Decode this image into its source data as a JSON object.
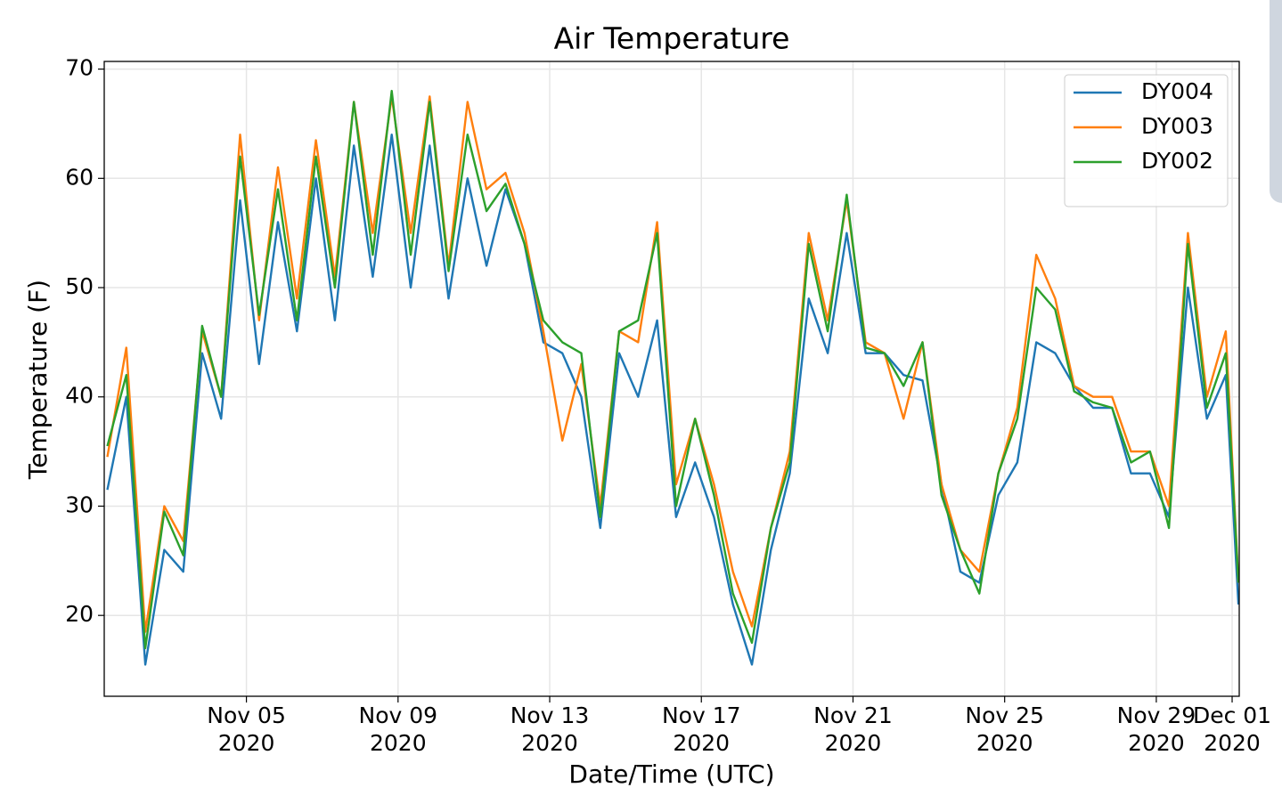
{
  "chart_data": {
    "type": "line",
    "title": "Air Temperature",
    "x_label": "Date/Time (UTC)",
    "y_label": "Temperature (F)",
    "x": [
      "2020-11-01 08:00",
      "2020-11-01 20:00",
      "2020-11-02 08:00",
      "2020-11-02 20:00",
      "2020-11-03 08:00",
      "2020-11-03 20:00",
      "2020-11-04 08:00",
      "2020-11-04 20:00",
      "2020-11-05 08:00",
      "2020-11-05 20:00",
      "2020-11-06 08:00",
      "2020-11-06 20:00",
      "2020-11-07 08:00",
      "2020-11-07 20:00",
      "2020-11-08 08:00",
      "2020-11-08 20:00",
      "2020-11-09 08:00",
      "2020-11-09 20:00",
      "2020-11-10 08:00",
      "2020-11-10 20:00",
      "2020-11-11 08:00",
      "2020-11-11 20:00",
      "2020-11-12 08:00",
      "2020-11-12 20:00",
      "2020-11-13 08:00",
      "2020-11-13 20:00",
      "2020-11-14 08:00",
      "2020-11-14 20:00",
      "2020-11-15 08:00",
      "2020-11-15 20:00",
      "2020-11-16 08:00",
      "2020-11-16 20:00",
      "2020-11-17 08:00",
      "2020-11-17 20:00",
      "2020-11-18 08:00",
      "2020-11-18 20:00",
      "2020-11-19 08:00",
      "2020-11-19 20:00",
      "2020-11-20 08:00",
      "2020-11-20 20:00",
      "2020-11-21 08:00",
      "2020-11-21 20:00",
      "2020-11-22 08:00",
      "2020-11-22 20:00",
      "2020-11-23 08:00",
      "2020-11-23 20:00",
      "2020-11-24 08:00",
      "2020-11-24 20:00",
      "2020-11-25 08:00",
      "2020-11-25 20:00",
      "2020-11-26 08:00",
      "2020-11-26 20:00",
      "2020-11-27 08:00",
      "2020-11-27 20:00",
      "2020-11-28 08:00",
      "2020-11-28 20:00",
      "2020-11-29 08:00",
      "2020-11-29 20:00",
      "2020-11-30 08:00",
      "2020-11-30 20:00",
      "2020-12-01 04:00"
    ],
    "series": [
      {
        "name": "DY004",
        "color": "#1f77b4",
        "values": [
          31.5,
          40,
          15.5,
          26,
          24,
          44,
          38,
          58,
          43,
          56,
          46,
          60,
          47,
          63,
          51,
          64,
          50,
          63,
          49,
          60,
          52,
          59,
          54,
          45,
          44,
          40,
          28,
          44,
          40,
          47,
          29,
          34,
          29,
          21,
          15.5,
          26,
          33,
          49,
          44,
          55,
          44,
          44,
          42,
          41.5,
          32,
          24,
          23,
          31,
          34,
          45,
          44,
          41,
          39,
          39,
          33,
          33,
          29,
          50,
          38,
          42,
          21
        ]
      },
      {
        "name": "DY003",
        "color": "#ff7f0e",
        "values": [
          34.5,
          44.5,
          18.5,
          30,
          26.8,
          46,
          40,
          64,
          47,
          61,
          49,
          63.5,
          51,
          67,
          55,
          67.5,
          55,
          67.5,
          52,
          67,
          59,
          60.5,
          55,
          46,
          36,
          43,
          30,
          46,
          45,
          56,
          32,
          38,
          32,
          24,
          19,
          28,
          35,
          55,
          47,
          58,
          45,
          44,
          38,
          45,
          32,
          26,
          24,
          33,
          39,
          53,
          49,
          41,
          40,
          40,
          35,
          35,
          30,
          55,
          40,
          46,
          23
        ]
      },
      {
        "name": "DY002",
        "color": "#2ca02c",
        "values": [
          35.5,
          42,
          17,
          29.5,
          25.5,
          46.5,
          40,
          62,
          47.5,
          59,
          47,
          62,
          50,
          67,
          53,
          68,
          53,
          67,
          51.5,
          64,
          57,
          59.5,
          54,
          47,
          45,
          44,
          29,
          46,
          47,
          55,
          30,
          38,
          31,
          22,
          17.5,
          28,
          34,
          54,
          46,
          58.5,
          44.5,
          44,
          41,
          45,
          31,
          26,
          22,
          33,
          38,
          50,
          48,
          40.5,
          39.5,
          39,
          34,
          35,
          28,
          54,
          39,
          44,
          23
        ]
      }
    ],
    "xlim": [
      "2020-11-01 06:00",
      "2020-12-01 04:30"
    ],
    "xticks": [
      {
        "value": "2020-11-05 00:00",
        "label": [
          "Nov 05",
          "2020"
        ]
      },
      {
        "value": "2020-11-09 00:00",
        "label": [
          "Nov 09",
          "2020"
        ]
      },
      {
        "value": "2020-11-13 00:00",
        "label": [
          "Nov 13",
          "2020"
        ]
      },
      {
        "value": "2020-11-17 00:00",
        "label": [
          "Nov 17",
          "2020"
        ]
      },
      {
        "value": "2020-11-21 00:00",
        "label": [
          "Nov 21",
          "2020"
        ]
      },
      {
        "value": "2020-11-25 00:00",
        "label": [
          "Nov 25",
          "2020"
        ]
      },
      {
        "value": "2020-11-29 00:00",
        "label": [
          "Nov 29",
          "2020"
        ]
      },
      {
        "value": "2020-12-01 00:00",
        "label": [
          "Dec 01",
          "2020"
        ]
      }
    ],
    "ylim": [
      12.6,
      70.7
    ],
    "yticks": [
      20,
      30,
      40,
      50,
      60,
      70
    ],
    "grid": true,
    "legend": "upper right"
  }
}
